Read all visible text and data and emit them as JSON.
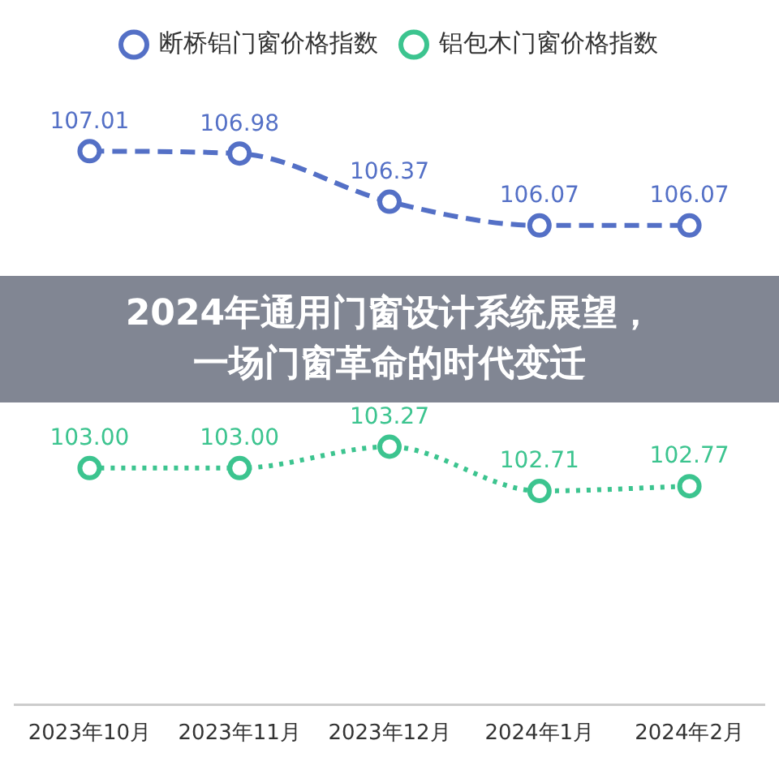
{
  "chart_data": {
    "type": "line",
    "title": "2024年通用门窗设计系统展望，一场门窗革命的时代变迁",
    "categories": [
      "2023年10月",
      "2023年11月",
      "2023年12月",
      "2024年1月",
      "2024年2月"
    ],
    "series": [
      {
        "name": "断桥铝门窗价格指数",
        "color": "#5470c6",
        "values": [
          107.01,
          106.98,
          106.37,
          106.07,
          106.07
        ],
        "value_labels": [
          "107.01",
          "106.98",
          "106.37",
          "106.07",
          "106.07"
        ],
        "line_style": "dashed"
      },
      {
        "name": "铝包木门窗价格指数",
        "color": "#3cc48f",
        "values": [
          103.0,
          103.0,
          103.27,
          102.71,
          102.77
        ],
        "value_labels": [
          "103.00",
          "103.00",
          "103.27",
          "102.71",
          "102.77"
        ],
        "line_style": "dotted"
      }
    ],
    "tick_labels": "x",
    "grid": false,
    "legend": "top",
    "marker": "circle"
  }
}
